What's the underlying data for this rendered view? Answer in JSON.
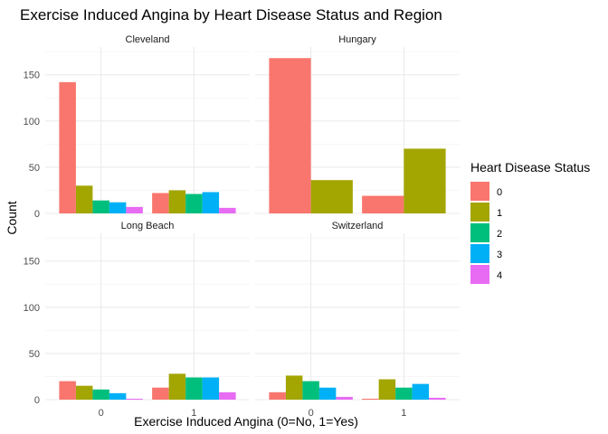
{
  "chart_data": {
    "type": "bar",
    "title": "Exercise Induced Angina by Heart Disease Status and Region",
    "xlabel": "Exercise Induced Angina (0=No, 1=Yes)",
    "ylabel": "Count",
    "x_categories": [
      "0",
      "1"
    ],
    "ylim": [
      0,
      180
    ],
    "yticks": [
      0,
      50,
      100,
      150
    ],
    "grid": true,
    "legend": {
      "title": "Heart Disease Status",
      "position": "right",
      "entries": [
        {
          "name": "0",
          "color": "#F8766D"
        },
        {
          "name": "1",
          "color": "#A3A500"
        },
        {
          "name": "2",
          "color": "#00BF7D"
        },
        {
          "name": "3",
          "color": "#00B0F6"
        },
        {
          "name": "4",
          "color": "#E76BF3"
        }
      ]
    },
    "facets": [
      {
        "name": "Cleveland",
        "groups": [
          {
            "x": "0",
            "bars": [
              {
                "status": "0",
                "count": 142
              },
              {
                "status": "1",
                "count": 30
              },
              {
                "status": "2",
                "count": 14
              },
              {
                "status": "3",
                "count": 12
              },
              {
                "status": "4",
                "count": 7
              }
            ]
          },
          {
            "x": "1",
            "bars": [
              {
                "status": "0",
                "count": 22
              },
              {
                "status": "1",
                "count": 25
              },
              {
                "status": "2",
                "count": 21
              },
              {
                "status": "3",
                "count": 23
              },
              {
                "status": "4",
                "count": 6
              }
            ]
          }
        ]
      },
      {
        "name": "Hungary",
        "groups": [
          {
            "x": "0",
            "bars": [
              {
                "status": "0",
                "count": 168
              },
              {
                "status": "1",
                "count": 36
              }
            ]
          },
          {
            "x": "1",
            "bars": [
              {
                "status": "0",
                "count": 19
              },
              {
                "status": "1",
                "count": 70
              }
            ]
          }
        ]
      },
      {
        "name": "Long Beach",
        "groups": [
          {
            "x": "0",
            "bars": [
              {
                "status": "0",
                "count": 20
              },
              {
                "status": "1",
                "count": 15
              },
              {
                "status": "2",
                "count": 11
              },
              {
                "status": "3",
                "count": 7
              },
              {
                "status": "4",
                "count": 1
              }
            ]
          },
          {
            "x": "1",
            "bars": [
              {
                "status": "0",
                "count": 13
              },
              {
                "status": "1",
                "count": 28
              },
              {
                "status": "2",
                "count": 24
              },
              {
                "status": "3",
                "count": 24
              },
              {
                "status": "4",
                "count": 8
              }
            ]
          }
        ]
      },
      {
        "name": "Switzerland",
        "groups": [
          {
            "x": "0",
            "bars": [
              {
                "status": "0",
                "count": 8
              },
              {
                "status": "1",
                "count": 26
              },
              {
                "status": "2",
                "count": 20
              },
              {
                "status": "3",
                "count": 13
              },
              {
                "status": "4",
                "count": 3
              }
            ]
          },
          {
            "x": "1",
            "bars": [
              {
                "status": "0",
                "count": 1
              },
              {
                "status": "1",
                "count": 22
              },
              {
                "status": "2",
                "count": 13
              },
              {
                "status": "3",
                "count": 17
              },
              {
                "status": "4",
                "count": 2
              }
            ]
          }
        ]
      }
    ]
  }
}
